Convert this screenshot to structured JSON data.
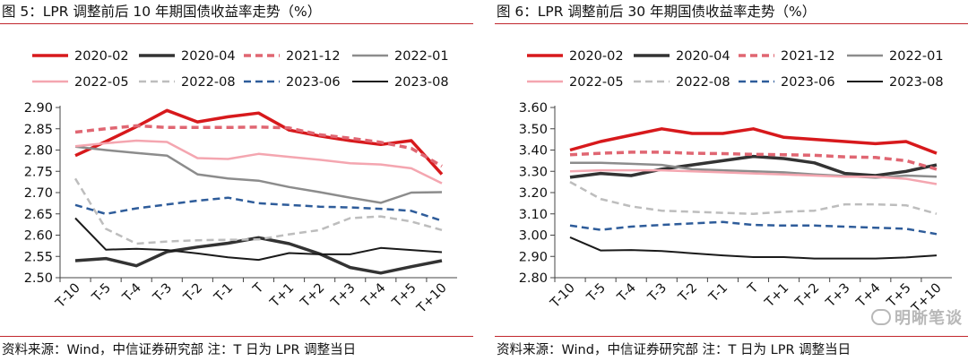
{
  "panels": [
    {
      "title": "图 5：LPR 调整前后 10 年期国债收益率走势（%）",
      "source": "资料来源：Wind，中信证券研究部 注：T 日为 LPR 调整当日"
    },
    {
      "title": "图 6：LPR 调整前后 30 年期国债收益率走势（%）",
      "source": "资料来源：Wind，中信证券研究部 注：T 日为 LPR 调整当日"
    }
  ],
  "watermark": "明晰笔谈",
  "series_styles": [
    {
      "name": "2020-02",
      "color": "#d7191c",
      "dash": "solid",
      "width": 3.5
    },
    {
      "name": "2020-04",
      "color": "#333333",
      "dash": "solid",
      "width": 3.5
    },
    {
      "name": "2021-12",
      "color": "#e06672",
      "dash": "dashed",
      "width": 3.5
    },
    {
      "name": "2022-01",
      "color": "#8c8c8c",
      "dash": "solid",
      "width": 2.5
    },
    {
      "name": "2022-05",
      "color": "#f4a6b0",
      "dash": "solid",
      "width": 2.5
    },
    {
      "name": "2022-08",
      "color": "#bdbdbd",
      "dash": "dashed",
      "width": 2.5
    },
    {
      "name": "2023-06",
      "color": "#2e5c9a",
      "dash": "dashed",
      "width": 2.5
    },
    {
      "name": "2023-08",
      "color": "#1a1a1a",
      "dash": "solid",
      "width": 2
    }
  ],
  "chart_data": [
    {
      "type": "line",
      "categories": [
        "T-10",
        "T-5",
        "T-4",
        "T-3",
        "T-2",
        "T-1",
        "T",
        "T+1",
        "T+2",
        "T+3",
        "T+4",
        "T+5",
        "T+10"
      ],
      "ylim": [
        2.5,
        2.9
      ],
      "yticks": [
        "2.50",
        "2.55",
        "2.60",
        "2.65",
        "2.70",
        "2.75",
        "2.80",
        "2.85",
        "2.90"
      ],
      "legend_position": "top",
      "series": [
        {
          "name": "2020-02",
          "values": [
            2.787,
            2.82,
            2.855,
            2.893,
            2.866,
            2.878,
            2.887,
            2.847,
            2.833,
            2.822,
            2.813,
            2.822,
            2.743
          ]
        },
        {
          "name": "2020-04",
          "values": [
            2.54,
            2.545,
            2.528,
            2.561,
            2.572,
            2.581,
            2.594,
            2.58,
            2.556,
            2.524,
            2.511,
            2.526,
            2.54
          ]
        },
        {
          "name": "2021-12",
          "values": [
            2.842,
            2.85,
            2.857,
            2.853,
            2.853,
            2.853,
            2.854,
            2.852,
            2.836,
            2.828,
            2.818,
            2.804,
            2.762
          ]
        },
        {
          "name": "2022-01",
          "values": [
            2.808,
            2.8,
            2.793,
            2.787,
            2.743,
            2.733,
            2.728,
            2.713,
            2.701,
            2.688,
            2.676,
            2.7,
            2.701
          ]
        },
        {
          "name": "2022-05",
          "values": [
            2.809,
            2.816,
            2.822,
            2.819,
            2.781,
            2.779,
            2.791,
            2.784,
            2.777,
            2.769,
            2.766,
            2.757,
            2.722
          ]
        },
        {
          "name": "2022-08",
          "values": [
            2.733,
            2.615,
            2.58,
            2.585,
            2.588,
            2.589,
            2.59,
            2.602,
            2.612,
            2.64,
            2.644,
            2.632,
            2.612
          ]
        },
        {
          "name": "2023-06",
          "values": [
            2.671,
            2.65,
            2.663,
            2.672,
            2.681,
            2.688,
            2.675,
            2.671,
            2.667,
            2.665,
            2.662,
            2.657,
            2.634
          ]
        },
        {
          "name": "2023-08",
          "values": [
            2.64,
            2.566,
            2.568,
            2.565,
            2.557,
            2.548,
            2.542,
            2.558,
            2.555,
            2.555,
            2.57,
            2.565,
            2.56
          ]
        }
      ]
    },
    {
      "type": "line",
      "categories": [
        "T-10",
        "T-5",
        "T-4",
        "T-3",
        "T-2",
        "T-1",
        "T",
        "T+1",
        "T+2",
        "T+3",
        "T+4",
        "T+5",
        "T+10"
      ],
      "ylim": [
        2.8,
        3.6
      ],
      "yticks": [
        "2.80",
        "2.90",
        "3.00",
        "3.10",
        "3.20",
        "3.30",
        "3.40",
        "3.50",
        "3.60"
      ],
      "legend_position": "top",
      "series": [
        {
          "name": "2020-02",
          "values": [
            3.4,
            3.44,
            3.47,
            3.5,
            3.478,
            3.478,
            3.5,
            3.46,
            3.45,
            3.44,
            3.43,
            3.44,
            3.385
          ]
        },
        {
          "name": "2020-04",
          "values": [
            3.272,
            3.29,
            3.28,
            3.31,
            3.33,
            3.35,
            3.37,
            3.36,
            3.34,
            3.29,
            3.28,
            3.3,
            3.33
          ]
        },
        {
          "name": "2021-12",
          "values": [
            3.378,
            3.385,
            3.39,
            3.39,
            3.385,
            3.383,
            3.38,
            3.378,
            3.375,
            3.368,
            3.365,
            3.35,
            3.31
          ]
        },
        {
          "name": "2022-01",
          "values": [
            3.34,
            3.34,
            3.335,
            3.33,
            3.31,
            3.305,
            3.3,
            3.295,
            3.285,
            3.278,
            3.27,
            3.28,
            3.275
          ]
        },
        {
          "name": "2022-05",
          "values": [
            3.3,
            3.305,
            3.305,
            3.305,
            3.3,
            3.295,
            3.29,
            3.285,
            3.28,
            3.275,
            3.275,
            3.265,
            3.24
          ]
        },
        {
          "name": "2022-08",
          "values": [
            3.25,
            3.17,
            3.135,
            3.115,
            3.11,
            3.105,
            3.1,
            3.11,
            3.115,
            3.145,
            3.145,
            3.14,
            3.1
          ]
        },
        {
          "name": "2023-06",
          "values": [
            3.045,
            3.025,
            3.04,
            3.048,
            3.055,
            3.062,
            3.048,
            3.045,
            3.045,
            3.04,
            3.035,
            3.03,
            3.005
          ]
        },
        {
          "name": "2023-08",
          "values": [
            2.99,
            2.928,
            2.93,
            2.925,
            2.915,
            2.905,
            2.897,
            2.897,
            2.89,
            2.89,
            2.89,
            2.895,
            2.905
          ]
        }
      ]
    }
  ]
}
